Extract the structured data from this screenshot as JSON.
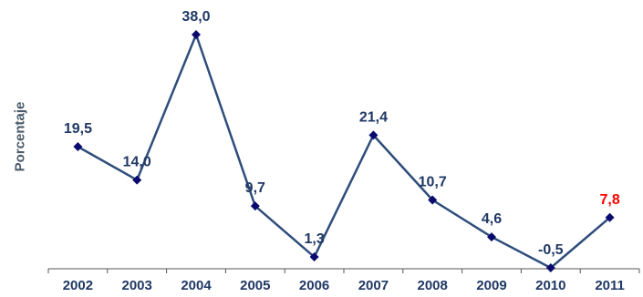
{
  "chart_data": {
    "type": "line",
    "title": "",
    "xlabel": "",
    "ylabel": "Porcentaje",
    "categories": [
      "2002",
      "2003",
      "2004",
      "2005",
      "2006",
      "2007",
      "2008",
      "2009",
      "2010",
      "2011"
    ],
    "series": [
      {
        "values": [
          19.5,
          14.0,
          38.0,
          9.7,
          1.3,
          21.4,
          10.7,
          4.6,
          -0.5,
          7.8
        ],
        "data_labels": [
          "19,5",
          "14,0",
          "38,0",
          "9,7",
          "1,3",
          "21,4",
          "10,7",
          "4,6",
          "-0,5",
          "7,8"
        ],
        "color": "#2e4d7b",
        "marker_color": "#0a0a6e"
      }
    ],
    "label_color": "#1f3864",
    "highlight_label_color": "#ff0000",
    "highlight_index": 9,
    "ylim": [
      -0.5,
      38.0
    ],
    "grid": false,
    "legend": "none"
  }
}
